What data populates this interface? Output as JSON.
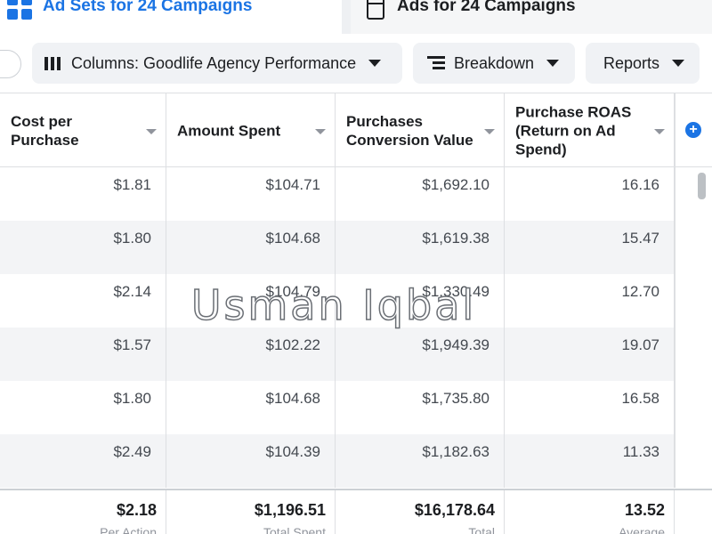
{
  "tabs": [
    {
      "label": "Ad Sets for 24 Campaigns",
      "icon": "grid-icon",
      "active": true
    },
    {
      "label": "Ads for 24 Campaigns",
      "icon": "ad-page-icon",
      "active": false
    }
  ],
  "toolbar": {
    "columns_label": "Columns: Goodlife Agency Performance",
    "breakdown_label": "Breakdown",
    "reports_label": "Reports"
  },
  "table": {
    "headers": [
      "Cost per Purchase",
      "Amount Spent",
      "Purchases Conversion Value",
      "Purchase ROAS (Return on Ad Spend)"
    ],
    "rows": [
      [
        "$1.81",
        "$104.71",
        "$1,692.10",
        "16.16"
      ],
      [
        "$1.80",
        "$104.68",
        "$1,619.38",
        "15.47"
      ],
      [
        "$2.14",
        "$104.79",
        "$1,330.49",
        "12.70"
      ],
      [
        "$1.57",
        "$102.22",
        "$1,949.39",
        "19.07"
      ],
      [
        "$1.80",
        "$104.68",
        "$1,735.80",
        "16.58"
      ],
      [
        "$2.49",
        "$104.39",
        "$1,182.63",
        "11.33"
      ]
    ],
    "totals": [
      {
        "value": "$2.18",
        "sub": "Per Action"
      },
      {
        "value": "$1,196.51",
        "sub": "Total Spent"
      },
      {
        "value": "$16,178.64",
        "sub": "Total"
      },
      {
        "value": "13.52",
        "sub": "Average"
      }
    ]
  },
  "watermark": "Usman Iqbal",
  "colors": {
    "accent": "#1b74e4",
    "button_bg": "#f0f2f5",
    "row_alt": "#f3f4f6"
  }
}
